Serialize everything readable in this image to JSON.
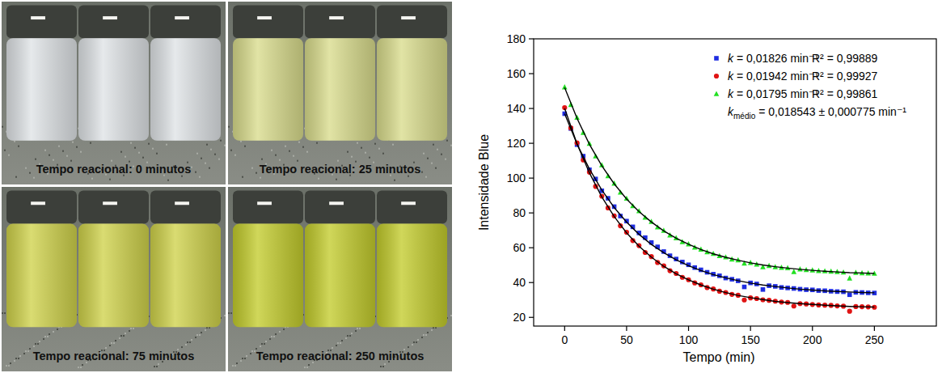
{
  "photos": {
    "panels": [
      {
        "caption": "Tempo reacional: 0 minutos",
        "color": "#dfe3e6"
      },
      {
        "caption": "Tempo reacional: 25 minutos",
        "color": "#d9dc8c"
      },
      {
        "caption": "Tempo reacional: 75 minutos",
        "color": "#cfd24a"
      },
      {
        "caption": "Tempo reacional: 250 minutos",
        "color": "#c3cc2c"
      }
    ]
  },
  "chart_data": {
    "type": "scatter",
    "x_label": "Tempo (min)",
    "y_label": "Intensidade Blue",
    "xlim": [
      -25,
      300
    ],
    "ylim": [
      15,
      180
    ],
    "xticks": [
      0,
      50,
      100,
      150,
      200,
      250
    ],
    "yticks": [
      20,
      40,
      60,
      80,
      100,
      120,
      140,
      160,
      180
    ],
    "grid": false,
    "legend": "upper right",
    "annotations": [
      "R² = 0,99889",
      "R² = 0,99927",
      "R² = 0,99861",
      "kmédio = 0,018543 ± 0,000775 min⁻¹"
    ],
    "series": [
      {
        "name": "k = 0,01826 min⁻¹",
        "type": "scatter",
        "marker": "square",
        "color": "#1f2de0",
        "x": [
          0,
          5,
          10,
          15,
          20,
          25,
          30,
          35,
          40,
          45,
          50,
          55,
          60,
          65,
          70,
          75,
          80,
          85,
          90,
          95,
          100,
          105,
          110,
          115,
          120,
          125,
          130,
          135,
          140,
          145,
          150,
          155,
          160,
          165,
          170,
          175,
          180,
          185,
          190,
          195,
          200,
          205,
          210,
          215,
          220,
          225,
          230,
          235,
          240,
          245,
          250
        ],
        "values": [
          137,
          128.5,
          119.2,
          112.6,
          104.8,
          99.5,
          92.7,
          88.4,
          83.6,
          78.2,
          75.3,
          72.0,
          68.5,
          65.8,
          63.0,
          60.5,
          57.8,
          55.4,
          53.5,
          51.8,
          50.2,
          48.6,
          47.3,
          45.9,
          44.8,
          43.9,
          42.6,
          41.9,
          41.0,
          37.5,
          39.8,
          39.2,
          36.0,
          38.2,
          37.8,
          37.2,
          36.9,
          36.6,
          36.2,
          35.9,
          35.8,
          35.4,
          35.3,
          35.0,
          34.8,
          34.7,
          33.0,
          34.4,
          34.3,
          34.1,
          34.0
        ]
      },
      {
        "name": "k = 0,01942 min⁻¹",
        "type": "scatter",
        "marker": "circle",
        "color": "#e01414",
        "x": [
          0,
          5,
          10,
          15,
          20,
          25,
          30,
          35,
          40,
          45,
          50,
          55,
          60,
          65,
          70,
          75,
          80,
          85,
          90,
          95,
          100,
          105,
          110,
          115,
          120,
          125,
          130,
          135,
          140,
          145,
          150,
          155,
          160,
          165,
          170,
          175,
          180,
          185,
          190,
          195,
          200,
          205,
          210,
          215,
          220,
          225,
          230,
          235,
          240,
          245,
          250
        ],
        "values": [
          140.5,
          128.8,
          120.2,
          110.4,
          103.4,
          95.2,
          89.6,
          82.9,
          78.3,
          72.6,
          68.9,
          64.1,
          61.2,
          57.3,
          54.9,
          51.5,
          49.6,
          46.8,
          45.2,
          43.0,
          41.6,
          39.8,
          38.7,
          37.1,
          36.3,
          35.0,
          34.3,
          33.2,
          32.7,
          30.0,
          31.2,
          30.8,
          30.1,
          29.8,
          29.3,
          28.8,
          28.6,
          26.5,
          27.9,
          27.7,
          27.4,
          27.1,
          27.0,
          26.9,
          26.6,
          26.4,
          23.5,
          26.2,
          26.1,
          26.0,
          25.8
        ]
      },
      {
        "name": "k = 0,01795 min⁻¹",
        "type": "scatter",
        "marker": "triangle",
        "color": "#22e022",
        "x": [
          0,
          5,
          10,
          15,
          20,
          25,
          30,
          35,
          40,
          45,
          50,
          55,
          60,
          65,
          70,
          75,
          80,
          85,
          90,
          95,
          100,
          105,
          110,
          115,
          120,
          125,
          130,
          135,
          140,
          145,
          150,
          155,
          160,
          165,
          170,
          175,
          180,
          185,
          190,
          195,
          200,
          205,
          210,
          215,
          220,
          225,
          230,
          235,
          240,
          245,
          250
        ],
        "values": [
          152.3,
          142.2,
          134.8,
          126.1,
          119.8,
          112.6,
          107.5,
          101.2,
          97.0,
          91.8,
          88.3,
          84.0,
          81.1,
          77.4,
          75.0,
          71.8,
          69.9,
          67.2,
          65.6,
          63.4,
          62.1,
          60.2,
          59.1,
          57.5,
          56.6,
          55.3,
          54.6,
          53.4,
          52.9,
          51.0,
          51.4,
          50.5,
          49.0,
          49.7,
          49.0,
          48.6,
          48.4,
          46.2,
          47.7,
          47.3,
          47.1,
          46.8,
          46.6,
          46.4,
          46.2,
          45.9,
          42.5,
          45.7,
          45.5,
          45.4,
          45.2
        ]
      },
      {
        "type": "line",
        "line_style": "solid",
        "color": "#000000",
        "x": [
          0,
          10,
          20,
          30,
          40,
          50,
          60,
          70,
          80,
          90,
          100,
          110,
          120,
          130,
          140,
          150,
          160,
          170,
          180,
          190,
          200,
          210,
          220,
          230,
          240,
          250
        ],
        "values": [
          137,
          119.6,
          105.2,
          93.1,
          83.1,
          74.7,
          67.7,
          61.9,
          57.1,
          53.1,
          49.7,
          46.9,
          44.6,
          42.7,
          41.1,
          39.7,
          38.6,
          37.7,
          36.9,
          36.2,
          35.7,
          35.2,
          34.9,
          34.6,
          34.3,
          34.1
        ]
      },
      {
        "type": "line",
        "line_style": "solid",
        "color": "#000000",
        "x": [
          0,
          10,
          20,
          30,
          40,
          50,
          60,
          70,
          80,
          90,
          100,
          110,
          120,
          130,
          140,
          150,
          160,
          170,
          180,
          190,
          200,
          210,
          220,
          230,
          240,
          250
        ],
        "values": [
          140,
          119.7,
          103.0,
          89.2,
          77.9,
          68.6,
          60.9,
          54.6,
          49.3,
          45.0,
          41.5,
          38.6,
          36.2,
          34.2,
          32.6,
          31.3,
          30.2,
          29.2,
          28.5,
          27.9,
          27.4,
          27.0,
          26.6,
          26.3,
          26.1,
          25.9
        ]
      },
      {
        "type": "line",
        "line_style": "solid",
        "color": "#000000",
        "x": [
          0,
          10,
          20,
          30,
          40,
          50,
          60,
          70,
          80,
          90,
          100,
          110,
          120,
          130,
          140,
          150,
          160,
          170,
          180,
          190,
          200,
          210,
          220,
          230,
          240,
          250
        ],
        "values": [
          152,
          134.3,
          119.4,
          107.1,
          96.7,
          88.0,
          80.8,
          74.8,
          69.7,
          65.5,
          62.0,
          59.0,
          56.5,
          54.5,
          52.8,
          51.3,
          50.1,
          49.1,
          48.3,
          47.6,
          47.0,
          46.5,
          46.1,
          45.7,
          45.5,
          45.2
        ]
      }
    ]
  }
}
